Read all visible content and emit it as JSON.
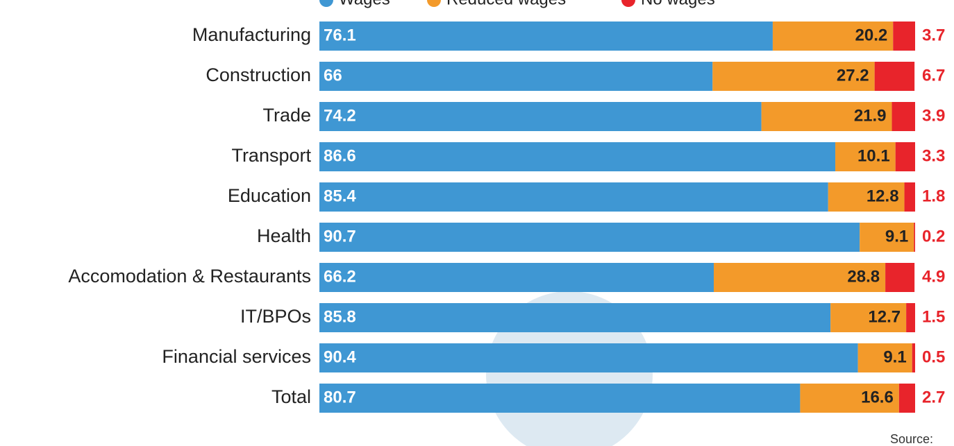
{
  "chart_data": {
    "type": "stacked_barh",
    "categories": [
      "Manufacturing",
      "Construction",
      "Trade",
      "Transport",
      "Education",
      "Health",
      "Accomodation & Restaurants",
      "IT/BPOs",
      "Financial services",
      "Total"
    ],
    "series": [
      {
        "name": "Wages",
        "color": "#3f97d3",
        "values": [
          76.1,
          66,
          74.2,
          86.6,
          85.4,
          90.7,
          66.2,
          85.8,
          90.4,
          80.7
        ]
      },
      {
        "name": "Reduced wages",
        "color": "#f39a2a",
        "values": [
          20.2,
          27.2,
          21.9,
          10.1,
          12.8,
          9.1,
          28.8,
          12.7,
          9.1,
          16.6
        ]
      },
      {
        "name": "No wages",
        "color": "#e8242b",
        "values": [
          3.7,
          6.7,
          3.9,
          3.3,
          1.8,
          0.2,
          4.9,
          1.5,
          0.5,
          2.7
        ]
      }
    ],
    "xlim": [
      0,
      100
    ],
    "note": "Source:"
  }
}
